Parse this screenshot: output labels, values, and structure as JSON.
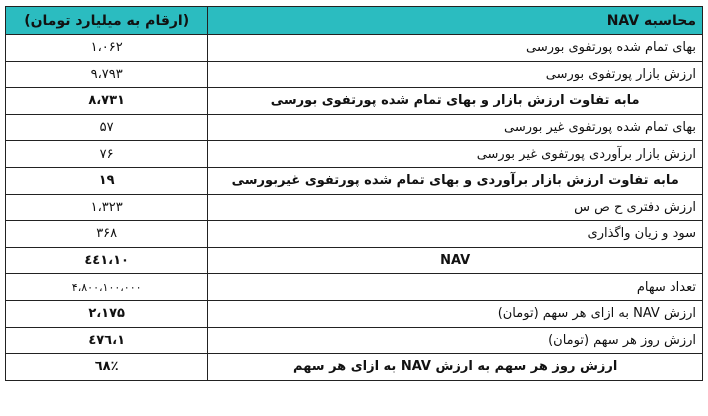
{
  "header": {
    "title": "محاسبه NAV",
    "unit": "(ارقام به میلیارد تومان)"
  },
  "header_color": "#2bbcc0",
  "rows": [
    {
      "label": "بهای تمام شده پورتفوی بورسی",
      "value": "۱،۰۶۲"
    },
    {
      "label": "ارزش بازار پورتفوی بورسی",
      "value": "۹،۷۹۳"
    },
    {
      "label": "مابه تفاوت ارزش بازار و بهای تمام شده پورتفوی بورسی",
      "value": "۸،۷۳۱"
    },
    {
      "label": "بهای تمام شده پورتفوی غیر بورسی",
      "value": "۵۷"
    },
    {
      "label": "ارزش بازار برآوردی پورتفوی غیر بورسی",
      "value": "۷۶"
    },
    {
      "label": "مابه تفاوت ارزش بازار برآوردی و بهای تمام شده پورتفوی غیربورسی",
      "value": "۱۹"
    },
    {
      "label": "ارزش دفتری ح ص س",
      "value": "۱،۳۲۳"
    },
    {
      "label": "سود و زیان واگذاری",
      "value": "۳۶۸"
    },
    {
      "label": "NAV",
      "value": "۱۰،٤٤۱"
    },
    {
      "label": "تعداد سهام",
      "value": "۴،۸۰۰،۱۰۰،۰۰۰"
    },
    {
      "label": "ارزش NAV به ازای هر سهم (تومان)",
      "value": "۲،۱۷۵"
    },
    {
      "label": "ارزش روز هر سهم (تومان)",
      "value": "۱،٤۷٦"
    },
    {
      "label": "ارزش روز هر سهم به ارزش NAV به ازای هر سهم",
      "value": "٦۸٪"
    }
  ]
}
